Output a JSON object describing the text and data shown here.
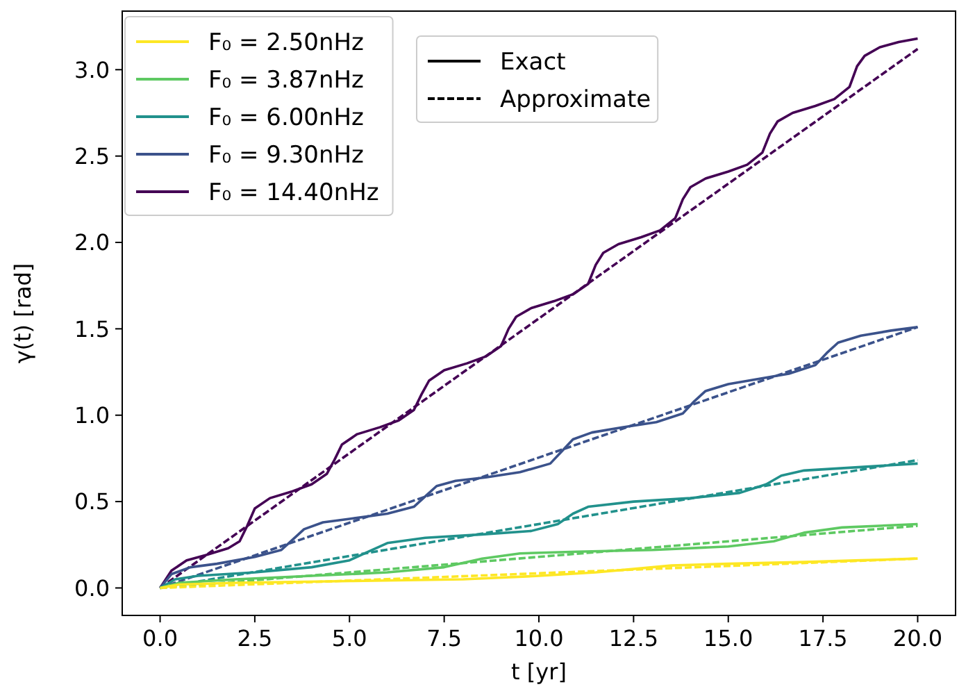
{
  "chart_data": {
    "type": "line",
    "xlabel": "t [yr]",
    "ylabel": "γ(t) [rad]",
    "xlim": [
      -1,
      21
    ],
    "ylim": [
      -0.159,
      3.339
    ],
    "xticks": [
      {
        "value": 0,
        "label": "0.0"
      },
      {
        "value": 2.5,
        "label": "2.5"
      },
      {
        "value": 5,
        "label": "5.0"
      },
      {
        "value": 7.5,
        "label": "7.5"
      },
      {
        "value": 10,
        "label": "10.0"
      },
      {
        "value": 12.5,
        "label": "12.5"
      },
      {
        "value": 15,
        "label": "15.0"
      },
      {
        "value": 17.5,
        "label": "17.5"
      },
      {
        "value": 20,
        "label": "20.0"
      }
    ],
    "yticks": [
      {
        "value": 0,
        "label": "0.0"
      },
      {
        "value": 0.5,
        "label": "0.5"
      },
      {
        "value": 1,
        "label": "1.0"
      },
      {
        "value": 1.5,
        "label": "1.5"
      },
      {
        "value": 2,
        "label": "2.0"
      },
      {
        "value": 2.5,
        "label": "2.5"
      },
      {
        "value": 3,
        "label": "3.0"
      }
    ],
    "grid": false,
    "legend": "top left",
    "series": [
      {
        "name": "F₀ = 2.50nHz",
        "color": "#fde725",
        "line_style": "solid",
        "x": [
          0,
          0.5,
          2,
          5,
          8,
          10,
          11.5,
          12.5,
          13.5,
          15,
          17,
          18.5,
          20
        ],
        "values": [
          0,
          0.02,
          0.03,
          0.04,
          0.05,
          0.07,
          0.09,
          0.11,
          0.13,
          0.14,
          0.15,
          0.16,
          0.17
        ]
      },
      {
        "name": "F₀ = 3.87nHz",
        "color": "#5ec962",
        "line_style": "solid",
        "x": [
          0,
          0.5,
          2,
          4,
          6,
          7.5,
          8.5,
          9.5,
          11,
          13,
          15,
          16.2,
          17,
          18,
          20
        ],
        "values": [
          0,
          0.03,
          0.05,
          0.07,
          0.09,
          0.12,
          0.17,
          0.2,
          0.21,
          0.22,
          0.24,
          0.27,
          0.32,
          0.35,
          0.37
        ]
      },
      {
        "name": "F₀ = 6.00nHz",
        "color": "#21918c",
        "line_style": "solid",
        "x": [
          0,
          0.4,
          1,
          2.5,
          4,
          5,
          5.5,
          6,
          7,
          8.5,
          9.8,
          10.5,
          10.9,
          11.3,
          12.5,
          14,
          15.3,
          16,
          16.4,
          17,
          18.5,
          20
        ],
        "values": [
          0,
          0.05,
          0.07,
          0.09,
          0.12,
          0.16,
          0.21,
          0.26,
          0.29,
          0.31,
          0.33,
          0.37,
          0.43,
          0.47,
          0.5,
          0.52,
          0.55,
          0.6,
          0.65,
          0.68,
          0.7,
          0.72
        ]
      },
      {
        "name": "F₀ = 9.30nHz",
        "color": "#3b528b",
        "line_style": "solid",
        "x": [
          0,
          0.3,
          0.8,
          1.5,
          2.5,
          3.2,
          3.5,
          3.8,
          4.3,
          5,
          6,
          6.7,
          7,
          7.3,
          7.8,
          8.6,
          9.5,
          10.3,
          10.6,
          10.9,
          11.4,
          12.2,
          13.1,
          13.8,
          14.1,
          14.4,
          15,
          15.8,
          16.6,
          17.3,
          17.6,
          17.9,
          18.5,
          19.3,
          20
        ],
        "values": [
          0,
          0.08,
          0.12,
          0.14,
          0.18,
          0.22,
          0.28,
          0.34,
          0.38,
          0.4,
          0.43,
          0.47,
          0.53,
          0.59,
          0.62,
          0.64,
          0.67,
          0.72,
          0.79,
          0.86,
          0.9,
          0.93,
          0.96,
          1.01,
          1.08,
          1.14,
          1.18,
          1.21,
          1.24,
          1.29,
          1.36,
          1.42,
          1.46,
          1.49,
          1.51
        ]
      },
      {
        "name": "F₀ = 14.40nHz",
        "color": "#440154",
        "line_style": "solid",
        "x": [
          0,
          0.3,
          0.7,
          1.2,
          1.8,
          2.1,
          2.3,
          2.5,
          2.9,
          3.5,
          4,
          4.4,
          4.6,
          4.8,
          5.2,
          5.8,
          6.3,
          6.7,
          6.9,
          7.1,
          7.5,
          8.1,
          8.6,
          9,
          9.2,
          9.4,
          9.8,
          10.4,
          10.9,
          11.3,
          11.5,
          11.7,
          12.1,
          12.7,
          13.2,
          13.6,
          13.8,
          14,
          14.4,
          15,
          15.5,
          15.9,
          16.1,
          16.3,
          16.7,
          17.3,
          17.8,
          18.2,
          18.4,
          18.6,
          19,
          19.5,
          20
        ],
        "values": [
          0,
          0.1,
          0.16,
          0.19,
          0.23,
          0.27,
          0.36,
          0.46,
          0.52,
          0.56,
          0.6,
          0.66,
          0.74,
          0.83,
          0.89,
          0.93,
          0.97,
          1.03,
          1.12,
          1.2,
          1.26,
          1.3,
          1.34,
          1.4,
          1.5,
          1.57,
          1.62,
          1.66,
          1.7,
          1.76,
          1.87,
          1.94,
          1.99,
          2.03,
          2.07,
          2.14,
          2.25,
          2.32,
          2.37,
          2.41,
          2.45,
          2.52,
          2.63,
          2.7,
          2.75,
          2.79,
          2.83,
          2.9,
          3.02,
          3.08,
          3.13,
          3.16,
          3.18
        ]
      },
      {
        "color": "#fde725",
        "line_style": "dashed",
        "x": [
          0,
          20
        ],
        "values": [
          0,
          0.17
        ]
      },
      {
        "color": "#5ec962",
        "line_style": "dashed",
        "x": [
          0,
          20
        ],
        "values": [
          0,
          0.36
        ]
      },
      {
        "color": "#21918c",
        "line_style": "dashed",
        "x": [
          0,
          20
        ],
        "values": [
          0,
          0.74
        ]
      },
      {
        "color": "#3b528b",
        "line_style": "dashed",
        "x": [
          0,
          20
        ],
        "values": [
          0,
          1.51
        ]
      },
      {
        "color": "#440154",
        "line_style": "dashed",
        "x": [
          0,
          20
        ],
        "values": [
          0,
          3.12
        ]
      },
      {
        "name": "Exact",
        "color": "#000000",
        "line_style": "solid",
        "values": [
          null,
          null
        ]
      },
      {
        "name": "Approximate",
        "color": "#000000",
        "line_style": "dashed",
        "values": [
          null,
          null
        ]
      }
    ]
  }
}
